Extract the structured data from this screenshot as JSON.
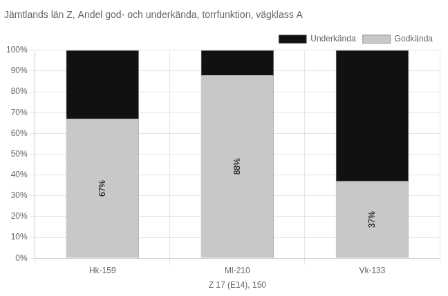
{
  "chart_data": {
    "type": "bar",
    "title": "Jämtlands län Z, Andel god- och underkända, torrfunktion, vägklass A",
    "x_label": "Z 17 (E14), 150",
    "categories": [
      "Hk-159",
      "Ml-210",
      "Vk-133"
    ],
    "series": [
      {
        "name": "Godkända",
        "color": "#c8c8c8",
        "values": [
          67,
          88,
          37
        ],
        "data_labels": true,
        "value_labels": [
          "67%",
          "88%",
          "37%"
        ]
      },
      {
        "name": "Underkända",
        "color": "#111111",
        "values": [
          33,
          12,
          63
        ]
      }
    ],
    "stacked": true,
    "ylim": [
      0,
      100
    ],
    "yticks": [
      {
        "value": 0,
        "label": "0%"
      },
      {
        "value": 10,
        "label": "10%"
      },
      {
        "value": 20,
        "label": "20%"
      },
      {
        "value": 30,
        "label": "30%"
      },
      {
        "value": 40,
        "label": "40%"
      },
      {
        "value": 50,
        "label": "50%"
      },
      {
        "value": 60,
        "label": "60%"
      },
      {
        "value": 70,
        "label": "70%"
      },
      {
        "value": 80,
        "label": "80%"
      },
      {
        "value": 90,
        "label": "90%"
      },
      {
        "value": 100,
        "label": "100%"
      }
    ],
    "grid": true,
    "legend": "upper right"
  }
}
